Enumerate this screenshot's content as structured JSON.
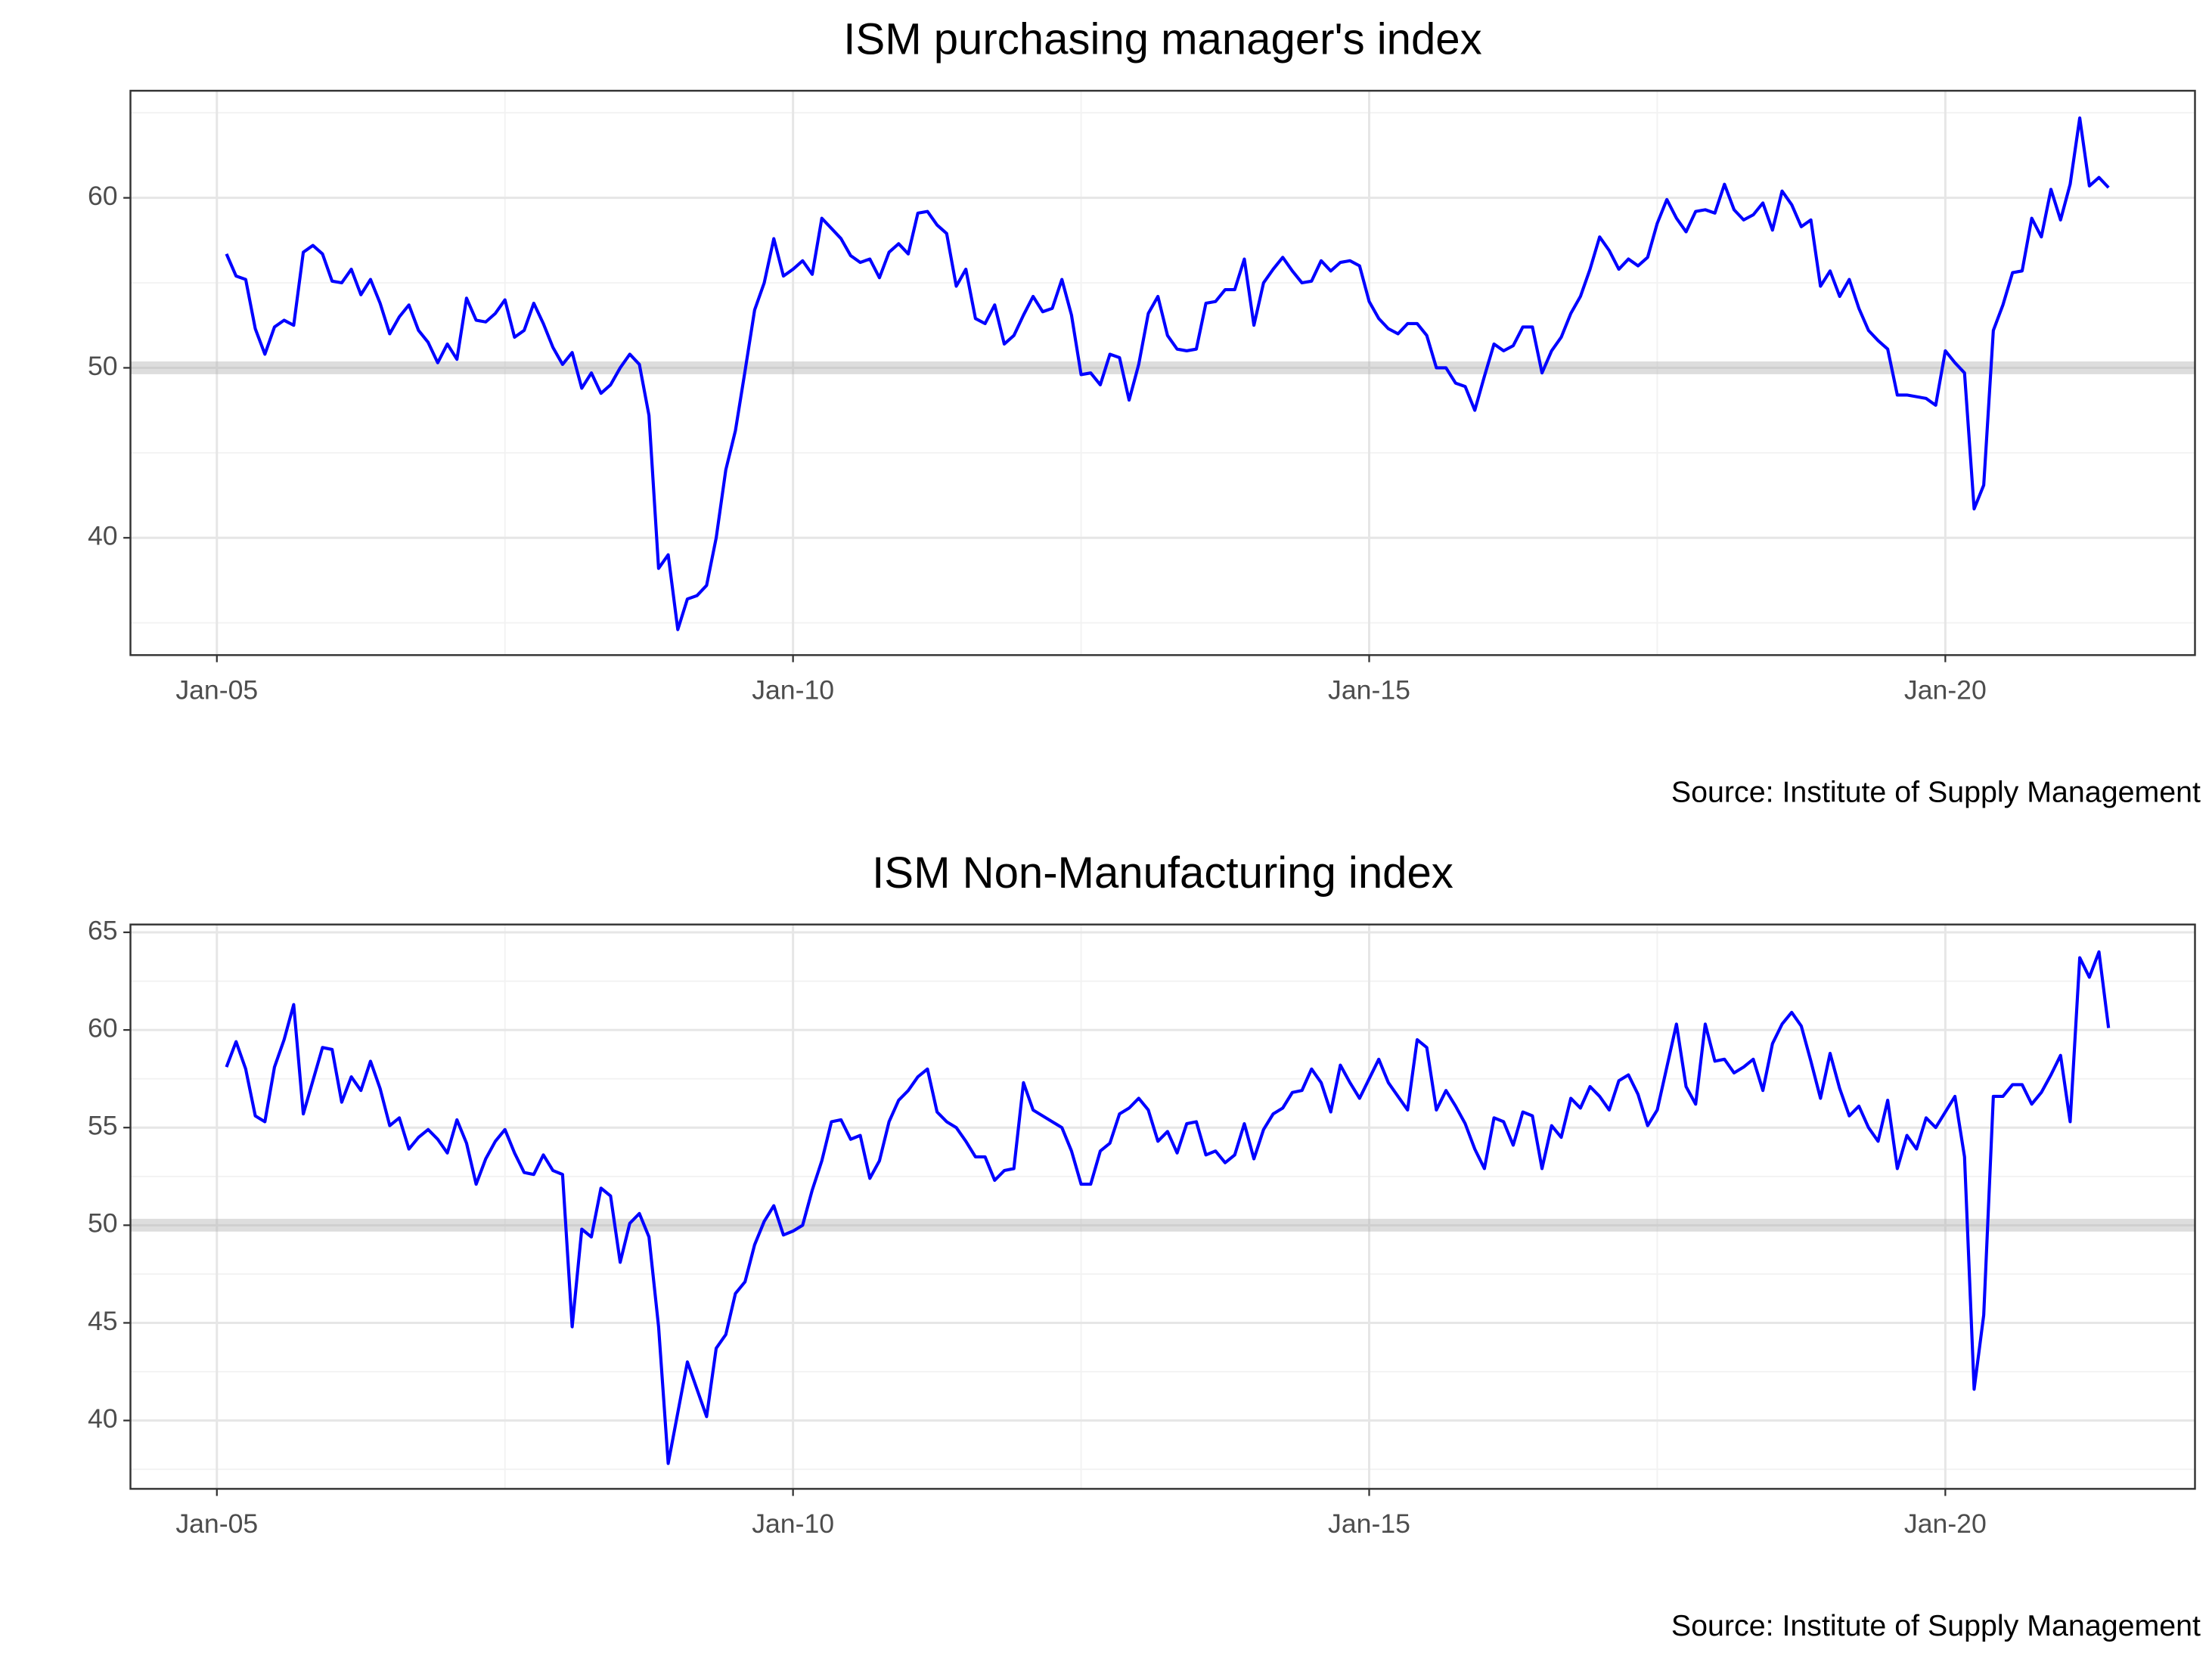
{
  "chart_data": [
    {
      "type": "line",
      "title": "ISM purchasing manager's index",
      "source": "Source: Institute of Supply Management",
      "xlim": [
        "2004-04",
        "2022-03"
      ],
      "xticks": [
        {
          "value": "2005-01",
          "label": "Jan-05"
        },
        {
          "value": "2010-01",
          "label": "Jan-10"
        },
        {
          "value": "2015-01",
          "label": "Jan-15"
        },
        {
          "value": "2020-01",
          "label": "Jan-20"
        }
      ],
      "ylim": [
        33.1,
        66.3
      ],
      "yticks": [
        40,
        50,
        60
      ],
      "grid": true,
      "hline": 50,
      "x": [
        "2005-02",
        "2005-03",
        "2005-04",
        "2005-05",
        "2005-06",
        "2005-07",
        "2005-08",
        "2005-09",
        "2005-10",
        "2005-11",
        "2005-12",
        "2006-01",
        "2006-02",
        "2006-03",
        "2006-04",
        "2006-05",
        "2006-06",
        "2006-07",
        "2006-08",
        "2006-09",
        "2006-10",
        "2006-11",
        "2006-12",
        "2007-01",
        "2007-02",
        "2007-03",
        "2007-04",
        "2007-05",
        "2007-06",
        "2007-07",
        "2007-08",
        "2007-09",
        "2007-10",
        "2007-11",
        "2007-12",
        "2008-01",
        "2008-02",
        "2008-03",
        "2008-04",
        "2008-05",
        "2008-06",
        "2008-07",
        "2008-08",
        "2008-09",
        "2008-10",
        "2008-11",
        "2008-12",
        "2009-01",
        "2009-02",
        "2009-03",
        "2009-04",
        "2009-05",
        "2009-06",
        "2009-07",
        "2009-08",
        "2009-09",
        "2009-10",
        "2009-11",
        "2009-12",
        "2010-01",
        "2010-02",
        "2010-03",
        "2010-04",
        "2010-05",
        "2010-06",
        "2010-07",
        "2010-08",
        "2010-09",
        "2010-10",
        "2010-11",
        "2010-12",
        "2011-01",
        "2011-02",
        "2011-03",
        "2011-04",
        "2011-05",
        "2011-06",
        "2011-07",
        "2011-08",
        "2011-09",
        "2011-10",
        "2011-11",
        "2011-12",
        "2012-01",
        "2012-02",
        "2012-03",
        "2012-04",
        "2012-05",
        "2012-06",
        "2012-07",
        "2012-08",
        "2012-09",
        "2012-10",
        "2012-11",
        "2012-12",
        "2013-01",
        "2013-02",
        "2013-03",
        "2013-04",
        "2013-05",
        "2013-06",
        "2013-07",
        "2013-08",
        "2013-09",
        "2013-10",
        "2013-11",
        "2013-12",
        "2014-01",
        "2014-02",
        "2014-03",
        "2014-04",
        "2014-05",
        "2014-06",
        "2014-07",
        "2014-08",
        "2014-09",
        "2014-10",
        "2014-11",
        "2014-12",
        "2015-01",
        "2015-02",
        "2015-03",
        "2015-04",
        "2015-05",
        "2015-06",
        "2015-07",
        "2015-08",
        "2015-09",
        "2015-10",
        "2015-11",
        "2015-12",
        "2016-01",
        "2016-02",
        "2016-03",
        "2016-04",
        "2016-05",
        "2016-06",
        "2016-07",
        "2016-08",
        "2016-09",
        "2016-10",
        "2016-11",
        "2016-12",
        "2017-01",
        "2017-02",
        "2017-03",
        "2017-04",
        "2017-05",
        "2017-06",
        "2017-07",
        "2017-08",
        "2017-09",
        "2017-10",
        "2017-11",
        "2017-12",
        "2018-01",
        "2018-02",
        "2018-03",
        "2018-04",
        "2018-05",
        "2018-06",
        "2018-07",
        "2018-08",
        "2018-09",
        "2018-10",
        "2018-11",
        "2018-12",
        "2019-01",
        "2019-02",
        "2019-03",
        "2019-04",
        "2019-05",
        "2019-06",
        "2019-07",
        "2019-08",
        "2019-09",
        "2019-10",
        "2019-11",
        "2019-12",
        "2020-01",
        "2020-02",
        "2020-03",
        "2020-04",
        "2020-05",
        "2020-06",
        "2020-07",
        "2020-08",
        "2020-09",
        "2020-10",
        "2020-11",
        "2020-12",
        "2021-01",
        "2021-02",
        "2021-03",
        "2021-04",
        "2021-05",
        "2021-06"
      ],
      "series": [
        {
          "name": "ISM purchasing manager's index",
          "color": "#0000ff",
          "values": [
            56.7,
            55.4,
            55.2,
            52.3,
            50.8,
            52.4,
            52.8,
            52.5,
            56.8,
            57.2,
            56.7,
            55.1,
            55.0,
            55.8,
            54.3,
            55.2,
            53.8,
            52.0,
            53.0,
            53.7,
            52.2,
            51.5,
            50.3,
            51.4,
            50.5,
            54.1,
            52.8,
            52.7,
            53.2,
            54.0,
            51.8,
            52.2,
            53.8,
            52.6,
            51.2,
            50.2,
            50.9,
            48.8,
            49.7,
            48.5,
            49.0,
            50.0,
            50.8,
            50.2,
            47.2,
            38.2,
            39.0,
            34.6,
            36.4,
            36.6,
            37.2,
            40.0,
            44.0,
            46.3,
            49.8,
            53.4,
            55.0,
            57.6,
            55.4,
            55.8,
            56.3,
            55.5,
            58.8,
            58.2,
            57.6,
            56.6,
            56.2,
            56.4,
            55.3,
            56.8,
            57.3,
            56.7,
            59.1,
            59.2,
            58.4,
            57.9,
            54.8,
            55.8,
            52.9,
            52.6,
            53.7,
            51.4,
            51.9,
            53.1,
            54.2,
            53.3,
            53.5,
            55.2,
            53.1,
            49.6,
            49.7,
            49.0,
            50.8,
            50.6,
            48.1,
            50.2,
            53.2,
            54.2,
            51.9,
            51.1,
            51.0,
            51.1,
            53.8,
            53.9,
            54.6,
            54.6,
            56.4,
            52.5,
            55.0,
            55.8,
            56.5,
            55.7,
            55.0,
            55.1,
            56.3,
            55.7,
            56.2,
            56.3,
            56.0,
            53.9,
            52.9,
            52.3,
            52.0,
            52.6,
            52.6,
            51.9,
            50.0,
            50.0,
            49.1,
            48.9,
            47.5,
            49.5,
            51.4,
            51.0,
            51.3,
            52.4,
            52.4,
            49.7,
            51.0,
            51.8,
            53.2,
            54.2,
            55.8,
            57.7,
            56.9,
            55.8,
            56.4,
            56.0,
            56.5,
            58.5,
            59.9,
            58.8,
            58.0,
            59.2,
            59.3,
            59.1,
            60.8,
            59.3,
            58.7,
            59.0,
            59.7,
            58.1,
            60.4,
            59.6,
            58.3,
            58.7,
            54.8,
            55.7,
            54.2,
            55.2,
            53.5,
            52.2,
            51.6,
            51.1,
            48.4,
            48.4,
            48.3,
            48.2,
            47.8,
            51.0,
            50.3,
            49.7,
            41.7,
            43.1,
            52.2,
            53.7,
            55.6,
            55.7,
            58.8,
            57.7,
            60.5,
            58.7,
            60.8,
            64.7,
            60.7,
            61.2,
            60.6
          ]
        }
      ]
    },
    {
      "type": "line",
      "title": "ISM Non-Manufacturing index",
      "source": "Source: Institute of Supply Management",
      "xlim": [
        "2004-04",
        "2022-03"
      ],
      "xticks": [
        {
          "value": "2005-01",
          "label": "Jan-05"
        },
        {
          "value": "2010-01",
          "label": "Jan-10"
        },
        {
          "value": "2015-01",
          "label": "Jan-15"
        },
        {
          "value": "2020-01",
          "label": "Jan-20"
        }
      ],
      "ylim": [
        36.5,
        65.4
      ],
      "yticks": [
        40,
        45,
        50,
        55,
        60,
        65
      ],
      "grid": true,
      "hline": 50,
      "x": [
        "2005-02",
        "2005-03",
        "2005-04",
        "2005-05",
        "2005-06",
        "2005-07",
        "2005-08",
        "2005-09",
        "2005-10",
        "2005-11",
        "2005-12",
        "2006-01",
        "2006-02",
        "2006-03",
        "2006-04",
        "2006-05",
        "2006-06",
        "2006-07",
        "2006-08",
        "2006-09",
        "2006-10",
        "2006-11",
        "2006-12",
        "2007-01",
        "2007-02",
        "2007-03",
        "2007-04",
        "2007-05",
        "2007-06",
        "2007-07",
        "2007-08",
        "2007-09",
        "2007-10",
        "2007-11",
        "2007-12",
        "2008-01",
        "2008-02",
        "2008-03",
        "2008-04",
        "2008-05",
        "2008-06",
        "2008-07",
        "2008-08",
        "2008-09",
        "2008-10",
        "2008-11",
        "2008-12",
        "2009-01",
        "2009-02",
        "2009-03",
        "2009-04",
        "2009-05",
        "2009-06",
        "2009-07",
        "2009-08",
        "2009-09",
        "2009-10",
        "2009-11",
        "2009-12",
        "2010-01",
        "2010-02",
        "2010-03",
        "2010-04",
        "2010-05",
        "2010-06",
        "2010-07",
        "2010-08",
        "2010-09",
        "2010-10",
        "2010-11",
        "2010-12",
        "2011-01",
        "2011-02",
        "2011-03",
        "2011-04",
        "2011-05",
        "2011-06",
        "2011-07",
        "2011-08",
        "2011-09",
        "2011-10",
        "2011-11",
        "2011-12",
        "2012-01",
        "2012-02",
        "2012-03",
        "2012-04",
        "2012-05",
        "2012-06",
        "2012-07",
        "2012-08",
        "2012-09",
        "2012-10",
        "2012-11",
        "2012-12",
        "2013-01",
        "2013-02",
        "2013-03",
        "2013-04",
        "2013-05",
        "2013-06",
        "2013-07",
        "2013-08",
        "2013-09",
        "2013-10",
        "2013-11",
        "2013-12",
        "2014-01",
        "2014-02",
        "2014-03",
        "2014-04",
        "2014-05",
        "2014-06",
        "2014-07",
        "2014-08",
        "2014-09",
        "2014-10",
        "2014-11",
        "2014-12",
        "2015-01",
        "2015-02",
        "2015-03",
        "2015-04",
        "2015-05",
        "2015-06",
        "2015-07",
        "2015-08",
        "2015-09",
        "2015-10",
        "2015-11",
        "2015-12",
        "2016-01",
        "2016-02",
        "2016-03",
        "2016-04",
        "2016-05",
        "2016-06",
        "2016-07",
        "2016-08",
        "2016-09",
        "2016-10",
        "2016-11",
        "2016-12",
        "2017-01",
        "2017-02",
        "2017-03",
        "2017-04",
        "2017-05",
        "2017-06",
        "2017-07",
        "2017-08",
        "2017-09",
        "2017-10",
        "2017-11",
        "2017-12",
        "2018-01",
        "2018-02",
        "2018-03",
        "2018-04",
        "2018-05",
        "2018-06",
        "2018-07",
        "2018-08",
        "2018-09",
        "2018-10",
        "2018-11",
        "2018-12",
        "2019-01",
        "2019-02",
        "2019-03",
        "2019-04",
        "2019-05",
        "2019-06",
        "2019-07",
        "2019-08",
        "2019-09",
        "2019-10",
        "2019-11",
        "2019-12",
        "2020-01",
        "2020-02",
        "2020-03",
        "2020-04",
        "2020-05",
        "2020-06",
        "2020-07",
        "2020-08",
        "2020-09",
        "2020-10",
        "2020-11",
        "2020-12",
        "2021-01",
        "2021-02",
        "2021-03",
        "2021-04",
        "2021-05",
        "2021-06"
      ],
      "series": [
        {
          "name": "ISM Non-Manufacturing index",
          "color": "#0000ff",
          "values": [
            58.1,
            59.4,
            58.0,
            55.6,
            55.3,
            58.1,
            59.5,
            61.3,
            55.7,
            57.4,
            59.1,
            59.0,
            56.3,
            57.6,
            56.9,
            58.4,
            57.0,
            55.1,
            55.5,
            53.9,
            54.5,
            54.9,
            54.4,
            53.7,
            55.4,
            54.2,
            52.1,
            53.4,
            54.3,
            54.9,
            53.7,
            52.7,
            52.6,
            53.6,
            52.8,
            52.6,
            44.8,
            49.8,
            49.4,
            51.9,
            51.5,
            48.1,
            50.1,
            50.6,
            49.4,
            44.8,
            37.8,
            40.4,
            43.0,
            41.6,
            40.2,
            43.7,
            44.4,
            46.5,
            47.1,
            49.0,
            50.2,
            51.0,
            49.5,
            49.7,
            50.0,
            51.8,
            53.3,
            55.3,
            55.4,
            54.4,
            54.6,
            52.4,
            53.3,
            55.3,
            56.4,
            56.9,
            57.6,
            58.0,
            55.8,
            55.3,
            55.0,
            54.3,
            53.5,
            53.5,
            52.3,
            52.8,
            52.9,
            57.3,
            55.9,
            55.6,
            55.3,
            55.0,
            53.8,
            52.1,
            52.1,
            53.8,
            54.2,
            55.7,
            56.0,
            56.5,
            55.9,
            54.3,
            54.8,
            53.7,
            55.2,
            55.3,
            53.6,
            53.8,
            53.2,
            53.6,
            55.2,
            53.4,
            54.9,
            55.7,
            56.0,
            56.8,
            56.9,
            58.0,
            57.3,
            55.8,
            58.2,
            57.3,
            56.5,
            57.5,
            58.5,
            57.3,
            56.6,
            55.9,
            59.5,
            59.1,
            55.9,
            56.9,
            56.1,
            55.2,
            53.9,
            52.9,
            55.5,
            55.3,
            54.1,
            55.8,
            55.6,
            52.9,
            55.1,
            54.5,
            56.5,
            56.0,
            57.1,
            56.6,
            55.9,
            57.4,
            57.7,
            56.7,
            55.1,
            55.9,
            58.1,
            60.3,
            57.1,
            56.2,
            60.3,
            58.4,
            58.5,
            57.8,
            58.1,
            58.5,
            56.9,
            59.3,
            60.3,
            60.9,
            60.2,
            58.4,
            56.5,
            58.8,
            57.0,
            55.6,
            56.1,
            55.0,
            54.3,
            56.4,
            52.9,
            54.6,
            53.9,
            55.5,
            55.0,
            55.8,
            56.6,
            53.5,
            41.6,
            45.4,
            56.6,
            56.6,
            57.2,
            57.2,
            56.2,
            56.8,
            57.7,
            58.7,
            55.3,
            63.7,
            62.7,
            64.0,
            60.1
          ]
        }
      ]
    }
  ]
}
